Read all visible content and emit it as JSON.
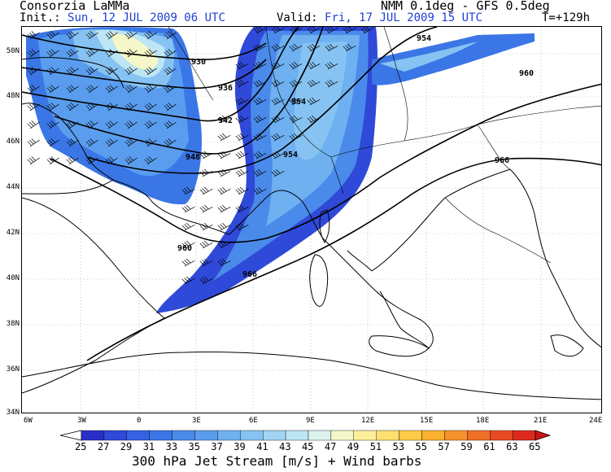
{
  "header": {
    "agency": "Consorzia LaMMa",
    "init_label": "Init.:",
    "init_value": "Sun, 12 JUL 2009  06 UTC",
    "valid_label": "Valid:",
    "valid_value": "Fri, 17 JUL 2009  15 UTC",
    "model": "NMM 0.1deg - GFS 0.5deg",
    "lead": "T=+129h"
  },
  "axes": {
    "lat_labels": [
      "50N",
      "48N",
      "46N",
      "44N",
      "42N",
      "40N",
      "38N",
      "36N",
      "34N"
    ],
    "lon_labels": [
      "6W",
      "3W",
      "0",
      "3E",
      "6E",
      "9E",
      "12E",
      "15E",
      "18E",
      "21E",
      "24E"
    ]
  },
  "contours": {
    "labels": [
      "930",
      "936",
      "942",
      "948",
      "954",
      "954",
      "954",
      "960",
      "960",
      "966",
      "966"
    ]
  },
  "legend": {
    "values": [
      "25",
      "27",
      "29",
      "31",
      "33",
      "35",
      "37",
      "39",
      "41",
      "43",
      "45",
      "47",
      "49",
      "51",
      "53",
      "55",
      "57",
      "59",
      "61",
      "63",
      "65"
    ],
    "colors": [
      "#2a2fc8",
      "#2f49d8",
      "#3562e2",
      "#3b76e6",
      "#4a8aea",
      "#5a9dee",
      "#6eb0f0",
      "#86c3f2",
      "#a0d5f3",
      "#bde5f3",
      "#dcf2ee",
      "#f5f7c8",
      "#fbef9a",
      "#fde070",
      "#fdcb46",
      "#fbb12e",
      "#f7912a",
      "#f06e26",
      "#e84b22",
      "#dd2a1e",
      "#cc1414"
    ],
    "caption": "300 hPa Jet Stream [m/s] + Wind barbs"
  }
}
